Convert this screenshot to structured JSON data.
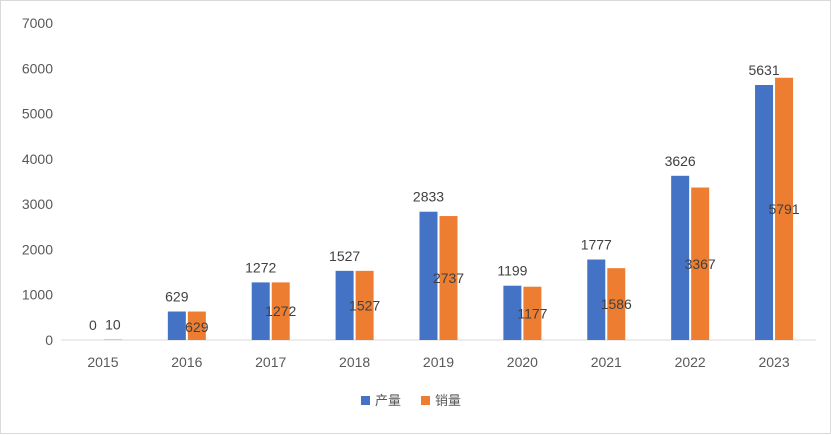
{
  "chart_data": {
    "type": "bar",
    "title": "",
    "xlabel": "",
    "ylabel": "",
    "categories": [
      "2015",
      "2016",
      "2017",
      "2018",
      "2019",
      "2020",
      "2021",
      "2022",
      "2023"
    ],
    "series": [
      {
        "name": "产量",
        "color": "#4472C4",
        "values": [
          0,
          629,
          1272,
          1527,
          2833,
          1199,
          1777,
          3626,
          5631
        ]
      },
      {
        "name": "销量",
        "color": "#ED7D31",
        "values": [
          10,
          629,
          1272,
          1527,
          2737,
          1177,
          1586,
          3367,
          5791
        ]
      }
    ],
    "ylim": [
      0,
      7000
    ],
    "yticks": [
      0,
      1000,
      2000,
      3000,
      4000,
      5000,
      6000,
      7000
    ],
    "grid": false,
    "legend": "bottom-center",
    "data_labels": {
      "series_1": "outside-end",
      "series_2": "inside-middle"
    }
  }
}
